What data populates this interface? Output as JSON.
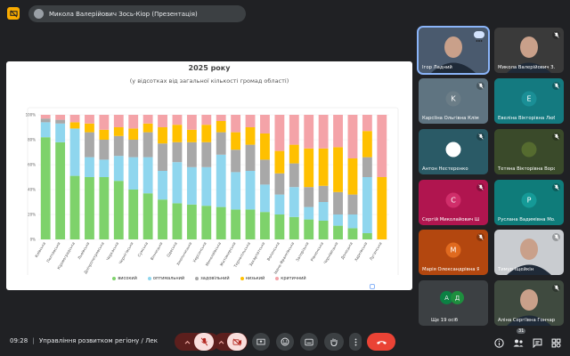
{
  "header": {
    "presenter_label": "Микола Валерійович Зось-Кіор (Презентація)"
  },
  "slide": {
    "title": "2025 року",
    "subtitle": "(у відсотках від загальної кількості громад області)"
  },
  "chart_data": {
    "type": "bar",
    "stacked": true,
    "percent": true,
    "title": "2025 року",
    "subtitle": "(у відсотках від загальної кількості громад області)",
    "ylim": [
      0,
      100
    ],
    "yticks": [
      "0%",
      "20%",
      "40%",
      "60%",
      "80%",
      "100%"
    ],
    "categories": [
      "Київська",
      "Полтавська",
      "Кіровоградська",
      "Львівська",
      "Дніпропетровська",
      "Черкаська",
      "Чернігівська",
      "Сумська",
      "Вінницька",
      "Одеська",
      "Хмельницька",
      "Херсонська",
      "Миколаївська",
      "Житомирська",
      "Тернопільська",
      "Закарпатська",
      "Волинська",
      "Івано-Франківська",
      "Запорізька",
      "Рівненська",
      "Чернівецька",
      "Донецька",
      "Харківська",
      "Луганська"
    ],
    "series": [
      {
        "name": "високий",
        "color": "#7ed26b",
        "values": [
          82,
          78,
          51,
          50,
          50,
          47,
          40,
          37,
          32,
          29,
          28,
          27,
          26,
          24,
          24,
          22,
          20,
          18,
          16,
          15,
          11,
          9,
          5,
          0
        ]
      },
      {
        "name": "оптимальний",
        "color": "#8fd6ee",
        "values": [
          12,
          15,
          38,
          16,
          14,
          20,
          26,
          29,
          23,
          33,
          30,
          31,
          42,
          30,
          31,
          22,
          16,
          24,
          10,
          15,
          9,
          11,
          45,
          0
        ]
      },
      {
        "name": "задовільний",
        "color": "#a8a8a8",
        "values": [
          3,
          3,
          0,
          20,
          16,
          16,
          14,
          20,
          22,
          16,
          20,
          20,
          18,
          18,
          21,
          20,
          17,
          19,
          16,
          13,
          18,
          16,
          16,
          0
        ]
      },
      {
        "name": "низький",
        "color": "#ffc000",
        "values": [
          0,
          0,
          5,
          7,
          8,
          7,
          9,
          7,
          13,
          14,
          10,
          14,
          9,
          14,
          14,
          21,
          18,
          15,
          31,
          30,
          36,
          29,
          21,
          50
        ]
      },
      {
        "name": "критичний",
        "color": "#f4a3a8",
        "values": [
          3,
          4,
          6,
          7,
          12,
          10,
          11,
          7,
          10,
          8,
          12,
          8,
          5,
          14,
          10,
          15,
          29,
          24,
          27,
          27,
          26,
          35,
          13,
          50
        ]
      }
    ]
  },
  "legend": [
    "високий",
    "оптимальний",
    "задовільний",
    "низький",
    "критичний"
  ],
  "participants": [
    {
      "name": "Ігор Ладний",
      "type": "video",
      "bg": "#4a5a6e",
      "active": true
    },
    {
      "name": "Микола Валерійович З...",
      "type": "video",
      "bg": "#3a3a3a"
    },
    {
      "name": "Карсіїна Ольгівна Клім...",
      "type": "avatar",
      "initial": "K",
      "tile": "#5f7481",
      "avatar": "#6b7d87"
    },
    {
      "name": "Евеліна Вікторівна Люб...",
      "type": "avatar",
      "initial": "E",
      "tile": "#147a80",
      "avatar": "#1a8f96"
    },
    {
      "name": "Антон Нестеренко",
      "type": "avatar",
      "initial": "",
      "tile": "#2a5a66",
      "avatar": "#ffffff"
    },
    {
      "name": "Тетяна Вікторівна Воро...",
      "type": "avatar",
      "initial": "",
      "tile": "#3a4a2a",
      "avatar": "#556b2f"
    },
    {
      "name": "Сергій Миколайович Ш...",
      "type": "avatar",
      "initial": "C",
      "tile": "#b0154f",
      "avatar": "#d02e6a"
    },
    {
      "name": "Руслана Вадимівна Мо...",
      "type": "avatar",
      "initial": "P",
      "tile": "#0f7c7a",
      "avatar": "#159a97"
    },
    {
      "name": "Марія Олександрівна Я...",
      "type": "avatar",
      "initial": "M",
      "tile": "#b3470f",
      "avatar": "#e06a1f"
    },
    {
      "name": "Тимур Іщейкін",
      "type": "video",
      "bg": "#c9ccd0"
    },
    {
      "name": "Ще 19 осіб",
      "type": "group",
      "tile": "#3c4043"
    },
    {
      "name": "Аліна Сергіївна Гончар...",
      "type": "video",
      "bg": "#3f4a3f"
    }
  ],
  "footer": {
    "time": "09:28",
    "meeting_title": "Управління розвитком регіону / Лек",
    "participants_count": "31"
  }
}
